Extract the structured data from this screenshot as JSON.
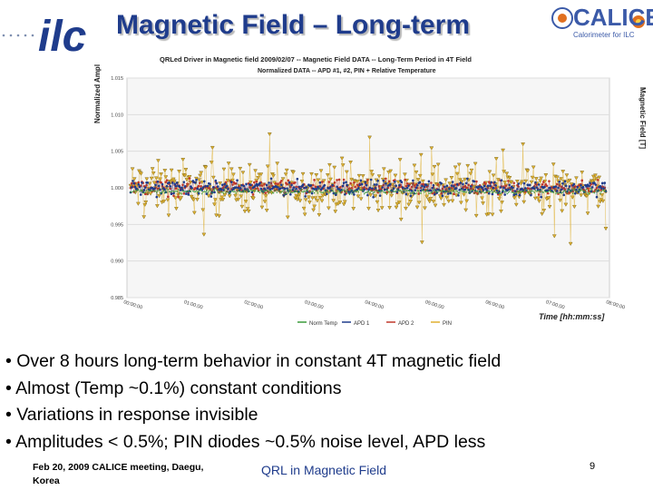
{
  "slide": {
    "title": "Magnetic Field – Long-term",
    "page_number": "9"
  },
  "logos": {
    "left_logo_text": "ilc",
    "right_logo_text": "CALICE",
    "right_logo_subtitle": "Calorimeter for ILC"
  },
  "chart_data": {
    "type": "scatter",
    "title": "QRLed Driver in Magnetic field 2009/02/07  -- Magnetic Field DATA -- Long-Term Period in 4T Field",
    "subtitle": "Normalized DATA  -- APD #1, #2, PIN  + Relative Temperature",
    "ylabel": "Normalized Ampl",
    "ylabel2": "Magnetic Field [T]",
    "xlabel": "Time [hh:mm:ss]",
    "ylim": [
      0.985,
      1.015
    ],
    "yticks": [
      "1.015",
      "1.010",
      "1.005",
      "1.000",
      "0.995",
      "0.990",
      "0.985"
    ],
    "xticks": [
      "00:00:00",
      "01:00:00",
      "02:00:00",
      "03:00:00",
      "04:00:00",
      "05:00:00",
      "06:00:00",
      "07:00:00",
      "08:00:00"
    ],
    "legend": [
      "Norm Temp",
      "APD 1",
      "APD 2",
      "PIN"
    ],
    "legend_position": "bottom",
    "series": [
      {
        "name": "Norm Temp",
        "color": "#3a9a3a",
        "center": 0.9995,
        "spread": 0.0005
      },
      {
        "name": "APD 1",
        "color": "#1f3c8c",
        "center": 1.0,
        "spread": 0.0015
      },
      {
        "name": "APD 2",
        "color": "#c0392b",
        "center": 1.0,
        "spread": 0.0015
      },
      {
        "name": "PIN",
        "color": "#e0b030",
        "center": 1.0,
        "spread": 0.005
      }
    ]
  },
  "bullets": [
    "Over 8 hours long-term behavior in constant 4T magnetic field",
    "Almost (Temp ~0.1%) constant conditions",
    "Variations in response invisible",
    "Amplitudes < 0.5%;  PIN diodes ~0.5% noise level, APD less"
  ],
  "footer": {
    "left": "Feb 20, 2009 CALICE meeting, Daegu, Korea",
    "center": "QRL in Magnetic Field"
  }
}
